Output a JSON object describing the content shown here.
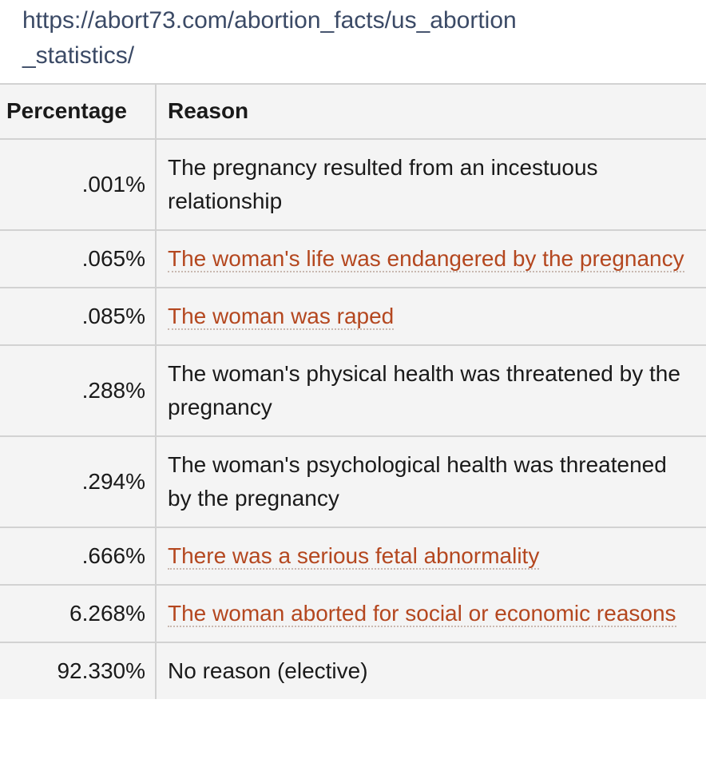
{
  "url_lines": [
    "https://abort73.com/abortion_facts/us_abortion",
    "_statistics/"
  ],
  "table": {
    "headers": [
      "Percentage",
      "Reason"
    ],
    "rows": [
      {
        "percentage": ".001%",
        "reason": "The pregnancy resulted from an incestuous relationship",
        "link": false
      },
      {
        "percentage": ".065%",
        "reason": "The woman's life was endangered by the pregnancy",
        "link": true
      },
      {
        "percentage": ".085%",
        "reason": "The woman was raped",
        "link": true
      },
      {
        "percentage": ".288%",
        "reason": "The woman's physical health was threatened by the pregnancy",
        "link": false
      },
      {
        "percentage": ".294%",
        "reason": "The woman's psychological health was threatened by the pregnancy",
        "link": false
      },
      {
        "percentage": ".666%",
        "reason": "There was a serious fetal abnormality",
        "link": true
      },
      {
        "percentage": "6.268%",
        "reason": "The woman aborted for social or economic reasons",
        "link": true
      },
      {
        "percentage": "92.330%",
        "reason": "No reason (elective)",
        "link": false
      }
    ]
  }
}
